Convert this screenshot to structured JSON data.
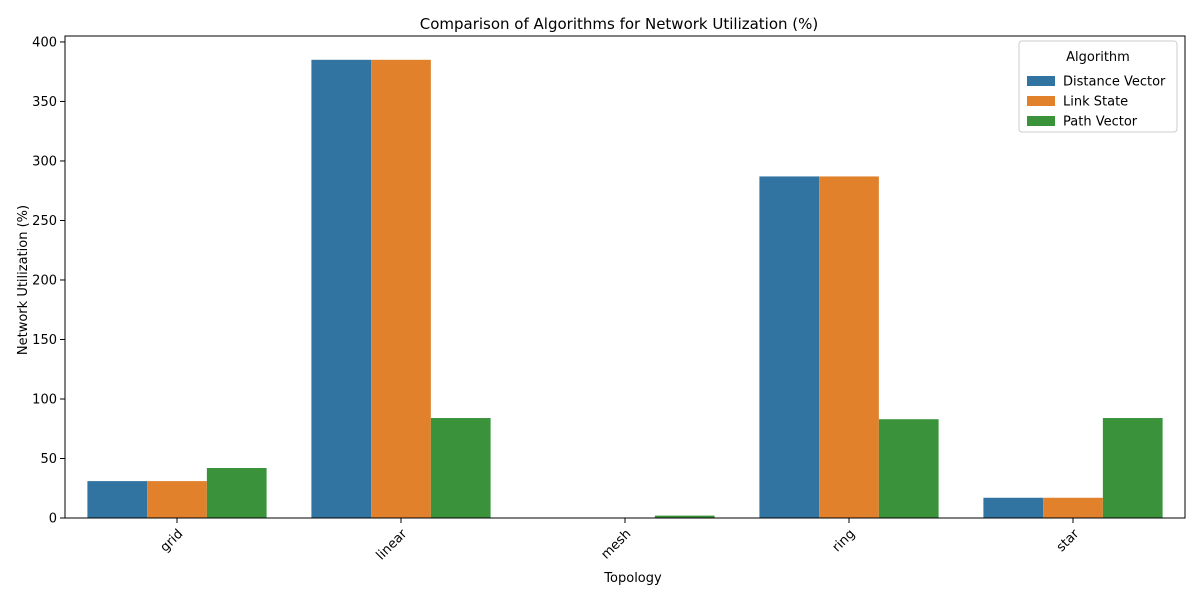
{
  "chart_data": {
    "type": "bar",
    "title": "Comparison of Algorithms for Network Utilization (%)",
    "xlabel": "Topology",
    "ylabel": "Network Utilization (%)",
    "ylim": [
      0,
      405
    ],
    "yticks": [
      0,
      50,
      100,
      150,
      200,
      250,
      300,
      350,
      400
    ],
    "categories": [
      "grid",
      "linear",
      "mesh",
      "ring",
      "star"
    ],
    "grid": false,
    "legend": {
      "title": "Algorithm",
      "placement": "top-right"
    },
    "series": [
      {
        "name": "Distance Vector",
        "color": "#3274a1",
        "values": [
          31,
          385,
          0,
          287,
          17
        ]
      },
      {
        "name": "Link State",
        "color": "#e1812c",
        "values": [
          31,
          385,
          0,
          287,
          17
        ]
      },
      {
        "name": "Path Vector",
        "color": "#3a923a",
        "values": [
          42,
          84,
          2,
          83,
          84
        ]
      }
    ]
  }
}
